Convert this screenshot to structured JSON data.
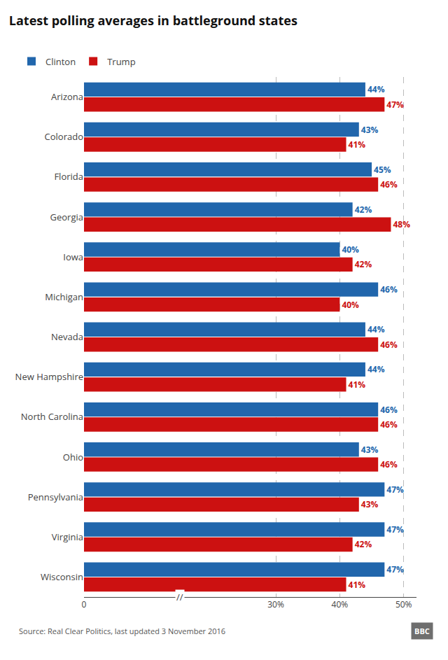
{
  "chart_data": {
    "type": "bar",
    "orientation": "horizontal",
    "title": "Latest polling averages in battleground states",
    "categories": [
      "Arizona",
      "Colorado",
      "Florida",
      "Georgia",
      "Iowa",
      "Michigan",
      "Nevada",
      "New Hampshire",
      "North Carolina",
      "Ohio",
      "Pennsylvania",
      "Virginia",
      "Wisconsin"
    ],
    "series": [
      {
        "name": "Clinton",
        "color": "#2166ac",
        "values": [
          44,
          43,
          45,
          42,
          40,
          46,
          44,
          44,
          46,
          43,
          47,
          47,
          47
        ],
        "value_labels": [
          "44%",
          "43%",
          "45%",
          "42%",
          "40%",
          "46%",
          "44%",
          "44%",
          "46%",
          "43%",
          "47%",
          "47%",
          "47%"
        ]
      },
      {
        "name": "Trump",
        "color": "#cc1111",
        "values": [
          47,
          41,
          46,
          48,
          42,
          40,
          46,
          41,
          46,
          46,
          43,
          42,
          41
        ],
        "value_labels": [
          "47%",
          "41%",
          "46%",
          "48%",
          "42%",
          "40%",
          "46%",
          "41%",
          "46%",
          "46%",
          "43%",
          "42%",
          "41%"
        ]
      }
    ],
    "xlim": [
      0,
      52
    ],
    "xticks": [
      0,
      {
        "value": 30,
        "label": "30%"
      },
      {
        "value": 40,
        "label": "40%"
      },
      {
        "value": 50,
        "label": "50%"
      }
    ],
    "grid": true,
    "data_labels": true,
    "legend": "top",
    "annotations": [
      "Source: Real Clear Politics, last updated 3 November 2016",
      "//",
      "BBC"
    ]
  }
}
